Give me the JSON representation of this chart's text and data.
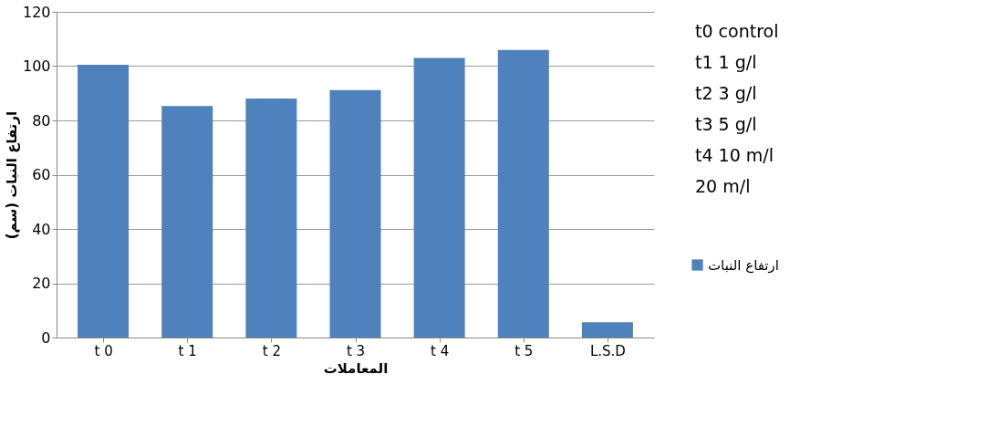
{
  "chart_data": {
    "type": "bar",
    "xlabel": "المعاملات",
    "ylabel": "ارتفاع النبات (سم)",
    "categories": [
      "t 0",
      "t 1",
      "t 2",
      "t 3",
      "t 4",
      "t 5",
      "L.S.D"
    ],
    "series": [
      {
        "name": "ارتفاع النبات",
        "color": "#4f81bd",
        "values": [
          100.5,
          85.3,
          88.1,
          91.2,
          103.0,
          106.0,
          5.6
        ]
      }
    ],
    "ylim": [
      0,
      120
    ],
    "yticks": [
      0,
      20,
      40,
      60,
      80,
      100,
      120
    ],
    "grid": "y",
    "legend": "right",
    "annotations": [
      "t0 control",
      "t1 1 g/l",
      "t2 3 g/l",
      "t3 5 g/l",
      "t4 10 m/l",
      "20 m/l"
    ]
  }
}
